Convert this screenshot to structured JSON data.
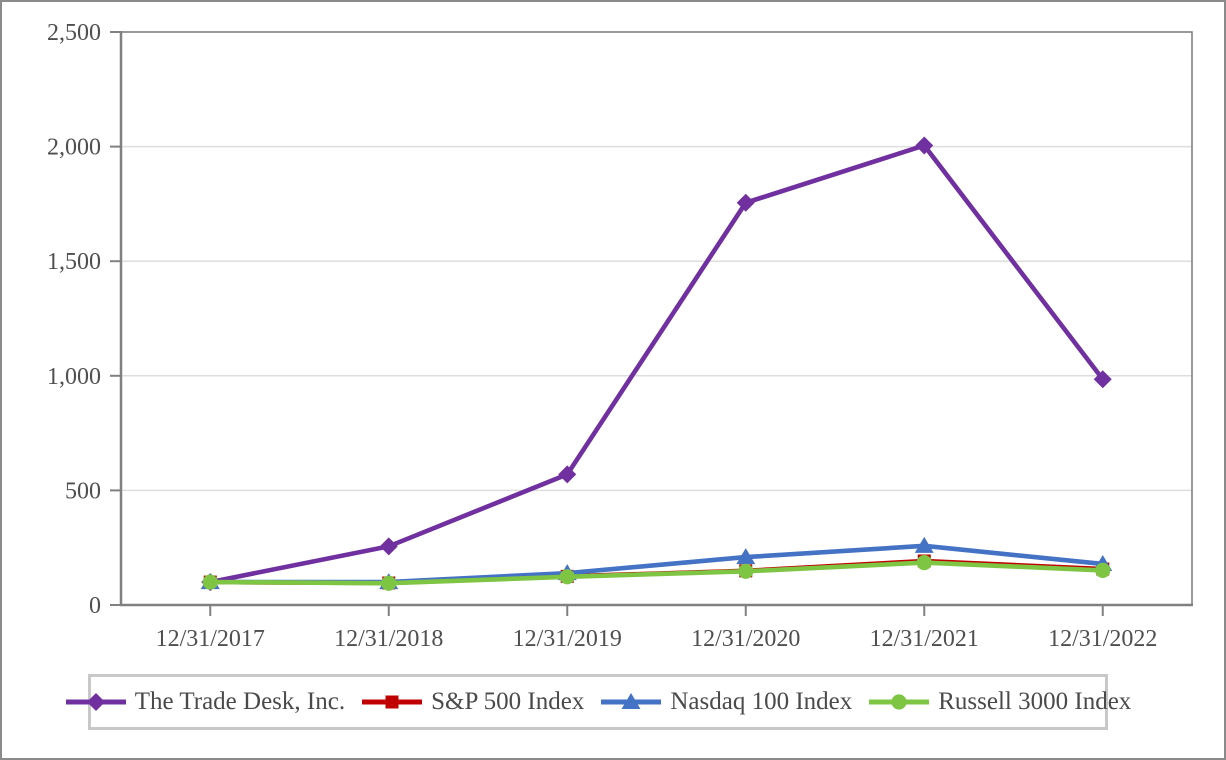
{
  "chart_data": {
    "type": "line",
    "title": "",
    "categories": [
      "12/31/2017",
      "12/31/2018",
      "12/31/2019",
      "12/31/2020",
      "12/31/2021",
      "12/31/2022"
    ],
    "series": [
      {
        "name": "The Trade Desk, Inc.",
        "marker": "diamond",
        "color": "#7030A0",
        "values": [
          100,
          256,
          570,
          1755,
          2005,
          985
        ]
      },
      {
        "name": "S&P 500 Index",
        "marker": "square",
        "color": "#C00000",
        "values": [
          100,
          96,
          125,
          149,
          192,
          157
        ]
      },
      {
        "name": "Nasdaq 100 Index",
        "marker": "triangle",
        "color": "#4472C4",
        "values": [
          100,
          100,
          139,
          209,
          258,
          179
        ]
      },
      {
        "name": "Russell 3000 Index",
        "marker": "circle",
        "color": "#7EC544",
        "values": [
          100,
          95,
          123,
          147,
          185,
          151
        ]
      }
    ],
    "y_axis": {
      "min": 0,
      "max": 2500,
      "step": 500,
      "tick_labels": [
        "0",
        "500",
        "1,000",
        "1,500",
        "2,000",
        "2,500"
      ]
    },
    "legend": {
      "position": "bottom"
    },
    "grid": true,
    "colors": {
      "axis": "#808080",
      "gridline": "#dedede",
      "tick_text": "#4f4f4f",
      "legend_border": "#c8c8c8",
      "frame_border": "#8a8a8a",
      "background": "#ffffff"
    }
  }
}
